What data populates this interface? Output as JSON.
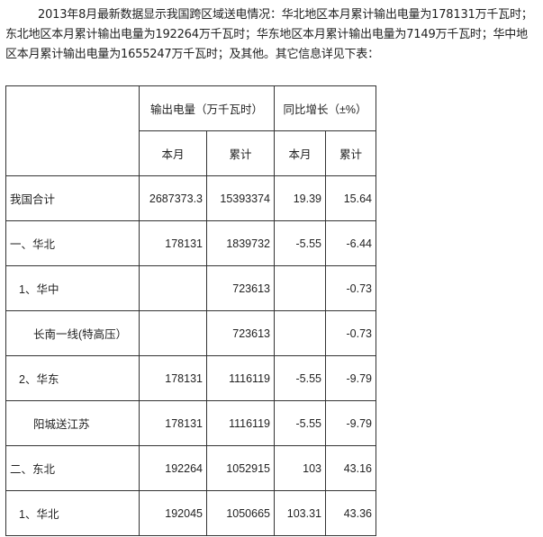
{
  "intro": "2013年8月最新数据显示我国跨区域送电情况：华北地区本月累计输出电量为178131万千瓦时；东北地区本月累计输出电量为192264万千瓦时；华东地区本月累计输出电量为7149万千瓦时；华中地区本月累计输出电量为1655247万千瓦时；及其他。其它信息详见下表：",
  "table": {
    "header": {
      "output_group": "输出电量（万千瓦时）",
      "growth_group": "同比增长（±%）",
      "sub": [
        "本月",
        "累计",
        "本月",
        "累计"
      ]
    },
    "rows": [
      {
        "name": "我国合计",
        "indent": 0,
        "values": [
          "2687373.3",
          "15393374",
          "19.39",
          "15.64"
        ]
      },
      {
        "name": "一、华北",
        "indent": 0,
        "values": [
          "178131",
          "1839732",
          "-5.55",
          "-6.44"
        ]
      },
      {
        "name": "1、华中",
        "indent": 1,
        "values": [
          "",
          "723613",
          "",
          "-0.73"
        ]
      },
      {
        "name": "长南一线(特高压）",
        "indent": 2,
        "values": [
          "",
          "723613",
          "",
          "-0.73"
        ]
      },
      {
        "name": "2、华东",
        "indent": 1,
        "values": [
          "178131",
          "1116119",
          "-5.55",
          "-9.79"
        ]
      },
      {
        "name": "阳城送江苏",
        "indent": 2,
        "values": [
          "178131",
          "1116119",
          "-5.55",
          "-9.79"
        ]
      },
      {
        "name": "二、东北",
        "indent": 0,
        "values": [
          "192264",
          "1052915",
          "103",
          "43.16"
        ]
      },
      {
        "name": "1、华北",
        "indent": 1,
        "values": [
          "192045",
          "1050665",
          "103.31",
          "43.36"
        ]
      }
    ]
  }
}
